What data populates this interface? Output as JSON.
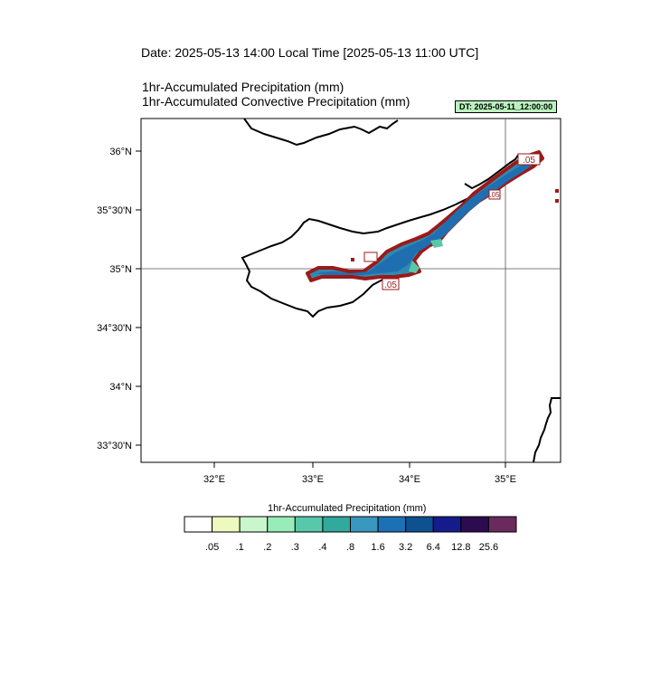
{
  "header": {
    "date_line": "Date: 2025-05-13  14:00 Local Time [2025-05-13  11:00 UTC]",
    "field_1": "1hr-Accumulated Precipitation   (mm)",
    "field_2": "1hr-Accumulated Convective Precipitation   (mm)",
    "dt_badge": "DT: 2025-05-11_12:00:00"
  },
  "map": {
    "lat_ticks": [
      "36°N",
      "35°30'N",
      "35°N",
      "34°30'N",
      "34°N",
      "33°30'N"
    ],
    "lon_ticks": [
      "32°E",
      "33°E",
      "34°E",
      "35°E"
    ],
    "contour_labels": [
      ".05",
      ".05",
      ".05"
    ],
    "colors": {
      "coast": "#000000",
      "contour": "#9b1a1a",
      "precip_core": "#1f6fb0"
    }
  },
  "colorbar": {
    "title": "1hr-Accumulated Precipitation  (mm)",
    "colors": [
      "#ffffff",
      "#eef9c0",
      "#c9f6cc",
      "#97ecb8",
      "#57c8a9",
      "#31a99c",
      "#3a97bf",
      "#1c71b6",
      "#0e5191",
      "#161b8c",
      "#2c0b4f",
      "#6a2a5e"
    ],
    "labels": [
      ".05",
      ".1",
      ".2",
      ".3",
      ".4",
      ".8",
      "1.6",
      "3.2",
      "6.4",
      "12.8",
      "25.6"
    ]
  }
}
